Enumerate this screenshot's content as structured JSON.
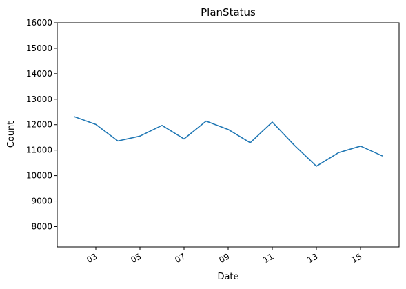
{
  "chart_data": {
    "type": "line",
    "title": "PlanStatus",
    "xlabel": "Date",
    "ylabel": "Count",
    "x": [
      "02",
      "03",
      "04",
      "05",
      "06",
      "07",
      "08",
      "09",
      "10",
      "11",
      "12",
      "13",
      "14",
      "15",
      "16"
    ],
    "x_tick_labels": [
      "03",
      "05",
      "07",
      "09",
      "11",
      "13",
      "15"
    ],
    "ylim": [
      7200,
      16000
    ],
    "y_ticks": [
      8000,
      9000,
      10000,
      11000,
      12000,
      13000,
      14000,
      15000,
      16000
    ],
    "grid": false,
    "series": [
      {
        "color": "#1f77b4",
        "values": [
          12320,
          12010,
          11360,
          11550,
          11970,
          11440,
          12140,
          11810,
          11290,
          12100,
          11190,
          10370,
          10900,
          11160,
          10770
        ]
      }
    ]
  }
}
